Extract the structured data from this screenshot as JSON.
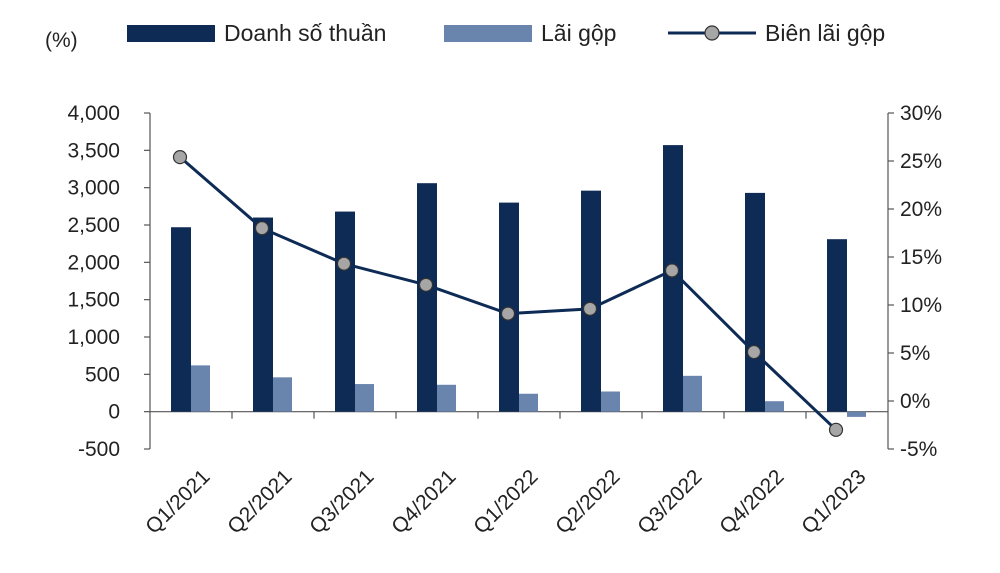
{
  "chart_data": {
    "type": "bar",
    "unit_label": "(%)",
    "categories": [
      "Q1/2021",
      "Q2/2021",
      "Q3/2021",
      "Q4/2021",
      "Q1/2022",
      "Q2/2022",
      "Q3/2022",
      "Q4/2022",
      "Q1/2023"
    ],
    "series": [
      {
        "name": "Doanh số thuần",
        "kind": "bar",
        "axis": "left",
        "color": "#0d2b55",
        "values": [
          2470,
          2600,
          2680,
          3060,
          2800,
          2960,
          3570,
          2930,
          2310
        ]
      },
      {
        "name": "Lãi gộp",
        "kind": "bar",
        "axis": "left",
        "color": "#6a85ad",
        "values": [
          620,
          460,
          370,
          360,
          240,
          270,
          480,
          140,
          -70
        ]
      },
      {
        "name": "Biên lãi gộp",
        "kind": "line",
        "axis": "right",
        "color": "#0d2b55",
        "marker_color": "#a6a6a6",
        "values": [
          25.4,
          18.0,
          14.3,
          12.1,
          9.1,
          9.6,
          13.6,
          5.1,
          -3.0
        ]
      }
    ],
    "y_left": {
      "min": -500,
      "max": 4000,
      "ticks": [
        -500,
        0,
        500,
        1000,
        1500,
        2000,
        2500,
        3000,
        3500,
        4000
      ],
      "tick_labels": [
        "-500",
        "0",
        "500",
        "1,000",
        "1,500",
        "2,000",
        "2,500",
        "3,000",
        "3,500",
        "4,000"
      ]
    },
    "y_right": {
      "min": -5,
      "max": 30,
      "ticks": [
        -5,
        0,
        5,
        10,
        15,
        20,
        25,
        30
      ],
      "tick_labels": [
        "-5%",
        "0%",
        "5%",
        "10%",
        "15%",
        "20%",
        "25%",
        "30%"
      ]
    },
    "legend_position": "top",
    "grid": false
  }
}
